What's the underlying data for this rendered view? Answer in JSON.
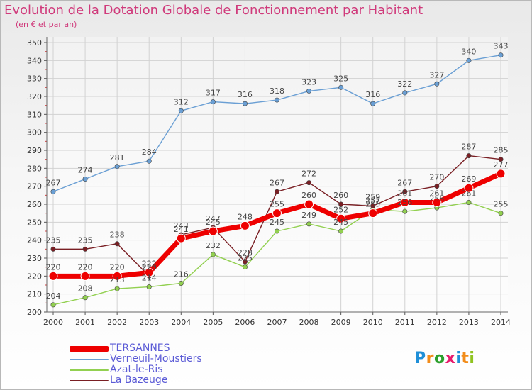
{
  "chart_data": {
    "type": "line",
    "title": "Evolution de la Dotation Globale de Fonctionnement par Habitant",
    "subtitle": "(en € et par an)",
    "xlabel": "",
    "ylabel": "",
    "ylim": [
      200,
      350
    ],
    "y_ticks": [
      "200",
      "210",
      "220",
      "230",
      "240",
      "250",
      "260",
      "270",
      "280",
      "290",
      "300",
      "310",
      "320",
      "330",
      "340",
      "350"
    ],
    "categories": [
      "2000",
      "2001",
      "2002",
      "2003",
      "2004",
      "2005",
      "2006",
      "2007",
      "2008",
      "2009",
      "2010",
      "2011",
      "2012",
      "2013",
      "2014"
    ],
    "series": [
      {
        "name": "TERSANNES",
        "color": "#ee0000",
        "values": [
          220,
          220,
          220,
          222,
          241,
          245,
          248,
          255,
          260,
          252,
          255,
          261,
          261,
          269,
          277
        ],
        "labels": [
          "220",
          "220",
          "220",
          "222",
          "241",
          "245",
          "248",
          "255",
          "260",
          "252",
          "255",
          "261",
          "261",
          "269",
          "277"
        ]
      },
      {
        "name": "Verneuil-Moustiers",
        "color": "#6a9fd4",
        "values": [
          267,
          274,
          281,
          284,
          312,
          317,
          316,
          318,
          323,
          325,
          316,
          322,
          327,
          340,
          343
        ],
        "labels": [
          "267",
          "274",
          "281",
          "284",
          "312",
          "317",
          "316",
          "318",
          "323",
          "325",
          "316",
          "322",
          "327",
          "340",
          "343"
        ]
      },
      {
        "name": "Azat-le-Ris",
        "color": "#92d050",
        "values": [
          204,
          208,
          213,
          214,
          216,
          232,
          225,
          245,
          249,
          245,
          257,
          256,
          258,
          261,
          255
        ],
        "labels": [
          "204",
          "208",
          "213",
          "214",
          "216",
          "232",
          "225",
          "245",
          "249",
          "245",
          "257",
          "256",
          "258",
          "261",
          "255"
        ]
      },
      {
        "name": "La Bazeuge",
        "color": "#7a1f24",
        "values": [
          235,
          235,
          238,
          220,
          243,
          247,
          228,
          267,
          272,
          260,
          259,
          267,
          270,
          287,
          285
        ],
        "labels": [
          "235",
          "235",
          "238",
          "220",
          "243",
          "247",
          "228",
          "267",
          "272",
          "260",
          "259",
          "267",
          "270",
          "287",
          "285"
        ]
      }
    ]
  },
  "brand": {
    "letters": [
      "P",
      "r",
      "o",
      "x",
      "i",
      "t",
      "i"
    ],
    "colors": [
      "#1f8fd8",
      "#f28c1a",
      "#2ca02c",
      "#e81a6c",
      "#1f8fd8",
      "#f28c1a",
      "#8fc31f"
    ]
  }
}
